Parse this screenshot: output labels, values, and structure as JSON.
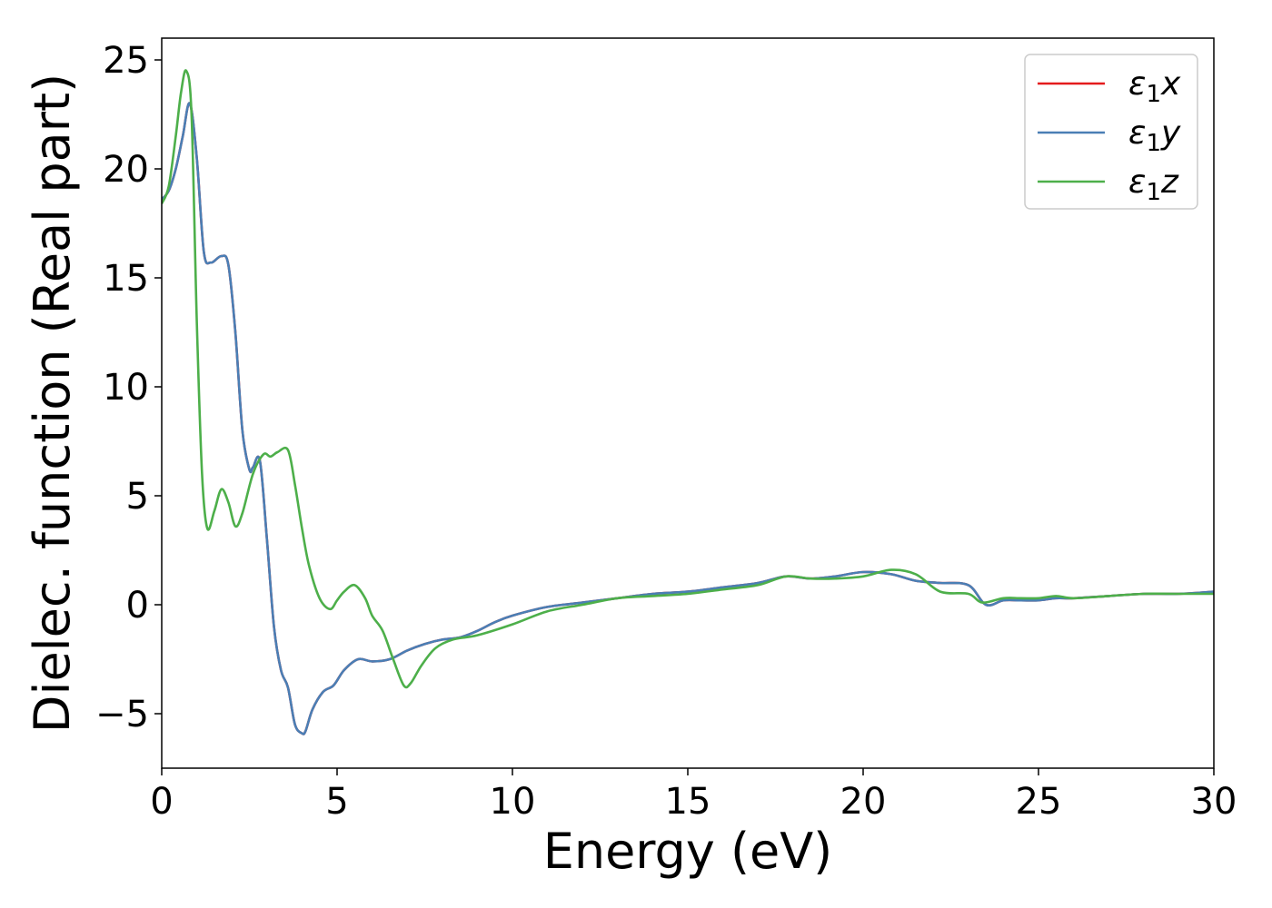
{
  "chart_data": {
    "type": "line",
    "xlabel": "Energy (eV)",
    "ylabel": "Dielec. function (Real part)",
    "xlim": [
      0,
      30
    ],
    "ylim": [
      -7.5,
      26
    ],
    "xticks": [
      0,
      5,
      10,
      15,
      20,
      25,
      30
    ],
    "yticks": [
      -5,
      0,
      5,
      10,
      15,
      20,
      25
    ],
    "xtick_labels": [
      "0",
      "5",
      "10",
      "15",
      "20",
      "25",
      "30"
    ],
    "ytick_labels": [
      "−5",
      "0",
      "5",
      "10",
      "15",
      "20",
      "25"
    ],
    "grid": false,
    "legend_position": "top-right",
    "series": [
      {
        "name": "ε₁x",
        "label_main": "ε",
        "label_sub": "1",
        "label_suffix": "x",
        "color": "#e41a1c",
        "x": [
          0,
          0.2,
          0.4,
          0.6,
          0.8,
          1.0,
          1.2,
          1.4,
          1.7,
          1.9,
          2.1,
          2.3,
          2.5,
          2.6,
          2.8,
          3.0,
          3.2,
          3.4,
          3.6,
          3.8,
          4.0,
          4.1,
          4.3,
          4.6,
          4.9,
          5.2,
          5.6,
          6.0,
          6.5,
          7.0,
          7.5,
          8.0,
          8.5,
          9.0,
          9.5,
          10,
          11,
          12,
          13,
          14,
          15,
          16,
          17,
          17.8,
          18.5,
          19.2,
          20,
          20.8,
          21.5,
          22.2,
          23,
          23.5,
          24,
          24.5,
          25,
          25.5,
          26,
          27,
          28,
          29,
          30
        ],
        "y": [
          18.6,
          19.0,
          20.0,
          21.5,
          23.0,
          20.5,
          16.2,
          15.7,
          16.0,
          15.6,
          12.5,
          8.0,
          6.2,
          6.3,
          6.6,
          3.0,
          -1.0,
          -3.0,
          -3.8,
          -5.5,
          -5.9,
          -5.8,
          -4.8,
          -4.0,
          -3.7,
          -3.0,
          -2.5,
          -2.6,
          -2.5,
          -2.1,
          -1.8,
          -1.6,
          -1.5,
          -1.2,
          -0.8,
          -0.5,
          -0.1,
          0.1,
          0.3,
          0.5,
          0.6,
          0.8,
          1.0,
          1.3,
          1.2,
          1.3,
          1.5,
          1.4,
          1.1,
          1.0,
          0.9,
          0.0,
          0.2,
          0.2,
          0.2,
          0.3,
          0.3,
          0.4,
          0.5,
          0.5,
          0.6
        ]
      },
      {
        "name": "ε₁y",
        "label_main": "ε",
        "label_sub": "1",
        "label_suffix": "y",
        "color": "#4a7fb5",
        "x": [
          0,
          0.2,
          0.4,
          0.6,
          0.8,
          1.0,
          1.2,
          1.4,
          1.7,
          1.9,
          2.1,
          2.3,
          2.5,
          2.6,
          2.8,
          3.0,
          3.2,
          3.4,
          3.6,
          3.8,
          4.0,
          4.1,
          4.3,
          4.6,
          4.9,
          5.2,
          5.6,
          6.0,
          6.5,
          7.0,
          7.5,
          8.0,
          8.5,
          9.0,
          9.5,
          10,
          11,
          12,
          13,
          14,
          15,
          16,
          17,
          17.8,
          18.5,
          19.2,
          20,
          20.8,
          21.5,
          22.2,
          23,
          23.5,
          24,
          24.5,
          25,
          25.5,
          26,
          27,
          28,
          29,
          30
        ],
        "y": [
          18.6,
          19.0,
          20.0,
          21.5,
          23.0,
          20.5,
          16.2,
          15.7,
          16.0,
          15.6,
          12.5,
          8.0,
          6.2,
          6.3,
          6.6,
          3.0,
          -1.0,
          -3.0,
          -3.8,
          -5.5,
          -5.9,
          -5.8,
          -4.8,
          -4.0,
          -3.7,
          -3.0,
          -2.5,
          -2.6,
          -2.5,
          -2.1,
          -1.8,
          -1.6,
          -1.5,
          -1.2,
          -0.8,
          -0.5,
          -0.1,
          0.1,
          0.3,
          0.5,
          0.6,
          0.8,
          1.0,
          1.3,
          1.2,
          1.3,
          1.5,
          1.4,
          1.1,
          1.0,
          0.9,
          0.0,
          0.2,
          0.2,
          0.2,
          0.3,
          0.3,
          0.4,
          0.5,
          0.5,
          0.6
        ]
      },
      {
        "name": "ε₁z",
        "label_main": "ε",
        "label_sub": "1",
        "label_suffix": "z",
        "color": "#4daf4a",
        "x": [
          0,
          0.2,
          0.4,
          0.55,
          0.7,
          0.85,
          1.0,
          1.15,
          1.3,
          1.5,
          1.7,
          1.9,
          2.1,
          2.3,
          2.6,
          2.9,
          3.1,
          3.3,
          3.6,
          3.8,
          4.0,
          4.2,
          4.5,
          4.8,
          5.0,
          5.2,
          5.5,
          5.8,
          6.0,
          6.3,
          6.6,
          6.9,
          7.1,
          7.4,
          7.8,
          8.3,
          9.0,
          10,
          11,
          12,
          13,
          14,
          15,
          16,
          17,
          17.8,
          18.5,
          19.2,
          20,
          20.8,
          21.5,
          22.2,
          23,
          23.4,
          24,
          24.5,
          25,
          25.5,
          26,
          27,
          28,
          29,
          30
        ],
        "y": [
          18.4,
          19.2,
          21.5,
          23.5,
          24.5,
          22.5,
          13.0,
          6.0,
          3.5,
          4.3,
          5.3,
          4.7,
          3.6,
          4.2,
          6.0,
          6.9,
          6.8,
          7.0,
          7.1,
          5.5,
          3.5,
          1.8,
          0.3,
          -0.2,
          0.2,
          0.6,
          0.9,
          0.3,
          -0.5,
          -1.2,
          -2.5,
          -3.7,
          -3.6,
          -2.8,
          -2.0,
          -1.6,
          -1.4,
          -0.9,
          -0.3,
          0.0,
          0.3,
          0.4,
          0.5,
          0.7,
          0.9,
          1.3,
          1.2,
          1.2,
          1.3,
          1.6,
          1.4,
          0.6,
          0.5,
          0.1,
          0.3,
          0.3,
          0.3,
          0.4,
          0.3,
          0.4,
          0.5,
          0.5,
          0.5
        ]
      }
    ]
  }
}
